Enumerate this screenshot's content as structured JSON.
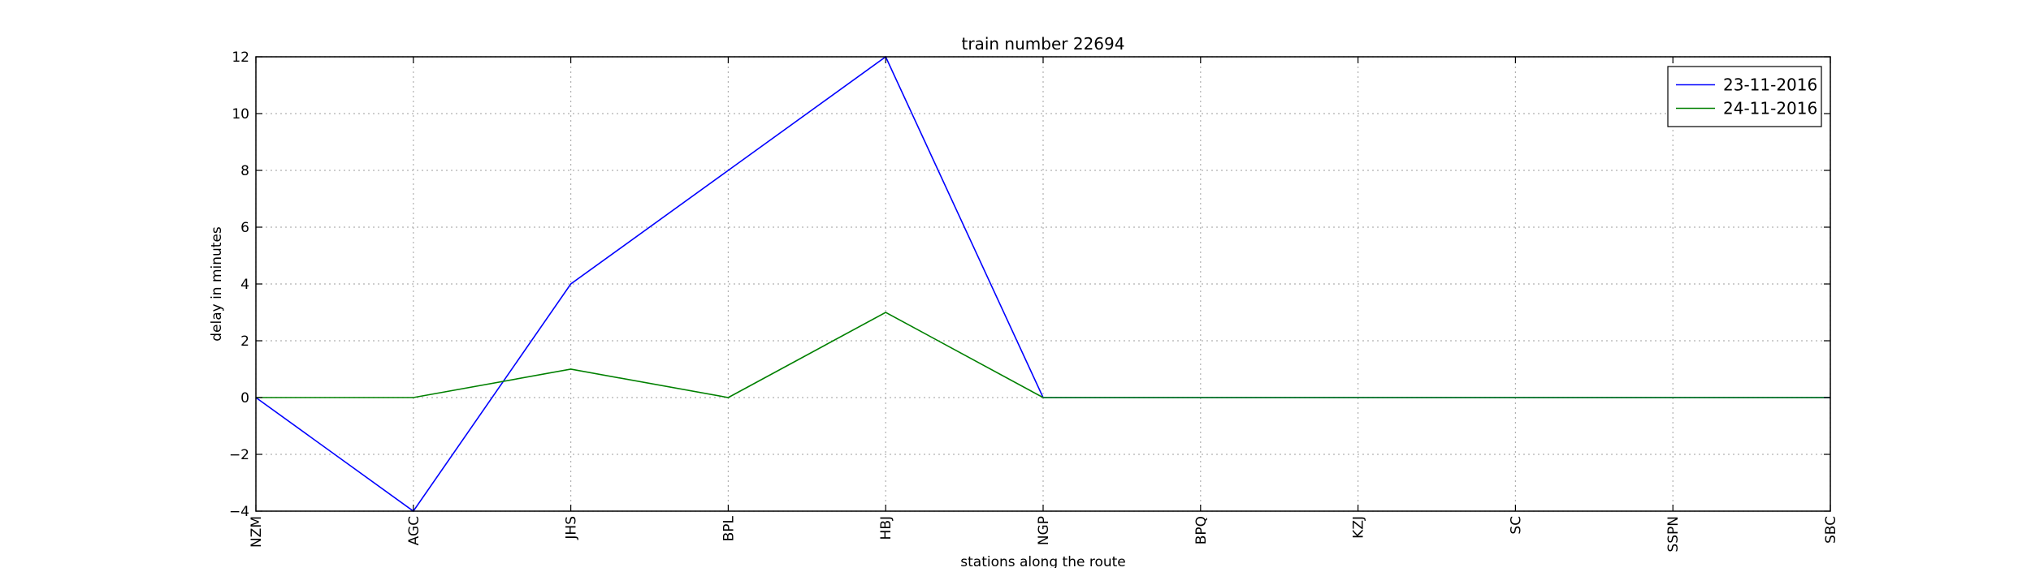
{
  "chart_data": {
    "type": "line",
    "title": "train number 22694",
    "xlabel": "stations along the route",
    "ylabel": "delay in minutes",
    "categories": [
      "NZM",
      "AGC",
      "JHS",
      "BPL",
      "HBJ",
      "NGP",
      "BPQ",
      "KZJ",
      "SC",
      "SSPN",
      "SBC"
    ],
    "ylim": [
      -4,
      12
    ],
    "yticks": [
      -4,
      -2,
      0,
      2,
      4,
      6,
      8,
      10,
      12
    ],
    "ytick_labels": [
      "−4",
      "−2",
      "0",
      "2",
      "4",
      "6",
      "8",
      "10",
      "12"
    ],
    "grid": true,
    "legend_position": "top-right",
    "series": [
      {
        "name": "23-11-2016",
        "color": "#0000ff",
        "values": [
          0,
          -4,
          4,
          8,
          12,
          0,
          0,
          0,
          0,
          0,
          0
        ]
      },
      {
        "name": "24-11-2016",
        "color": "#008000",
        "values": [
          0,
          0,
          1,
          0,
          3,
          0,
          0,
          0,
          0,
          0,
          0
        ]
      }
    ]
  }
}
